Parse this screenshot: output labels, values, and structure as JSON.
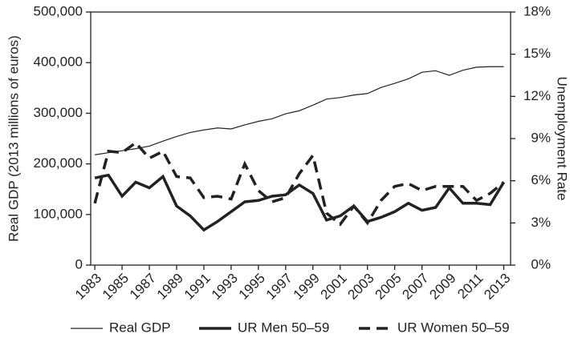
{
  "chart_data": {
    "type": "line",
    "x": [
      1983,
      1984,
      1985,
      1986,
      1987,
      1988,
      1989,
      1990,
      1991,
      1992,
      1993,
      1994,
      1995,
      1996,
      1997,
      1998,
      1999,
      2000,
      2001,
      2002,
      2003,
      2004,
      2005,
      2006,
      2007,
      2008,
      2009,
      2010,
      2011,
      2012,
      2013
    ],
    "xlim": [
      1982.7,
      2013.5
    ],
    "xticks": [
      1983,
      1985,
      1987,
      1989,
      1991,
      1993,
      1995,
      1997,
      1999,
      2001,
      2003,
      2005,
      2007,
      2009,
      2011,
      2013
    ],
    "ylabel": "Real GDP (2013 millions of euros)",
    "y2label": "Unemployment Rate",
    "ylim": [
      0,
      500000
    ],
    "yticks": [
      0,
      {
        "value": 100000,
        "label": "100,000"
      },
      {
        "value": 200000,
        "label": "200,000"
      },
      {
        "value": 300000,
        "label": "300,000"
      },
      {
        "value": 400000,
        "label": "400,000"
      },
      {
        "value": 500000,
        "label": "500,000"
      }
    ],
    "y2lim": [
      0,
      18
    ],
    "y2ticks": [
      {
        "value": 0,
        "label": "0%"
      },
      {
        "value": 3,
        "label": "3%"
      },
      {
        "value": 6,
        "label": "6%"
      },
      {
        "value": 9,
        "label": "9%"
      },
      {
        "value": 12,
        "label": "12%"
      },
      {
        "value": 15,
        "label": "15%"
      },
      {
        "value": 18,
        "label": "18%"
      }
    ],
    "legend": "bottom",
    "series": [
      {
        "name": "Real GDP",
        "color": "#222222",
        "width": 1.2,
        "dash": false,
        "values": [
          218000,
          222000,
          226000,
          230000,
          235000,
          245000,
          254000,
          262000,
          267000,
          271000,
          269000,
          277000,
          284000,
          289000,
          299000,
          305000,
          316000,
          328000,
          331000,
          336000,
          339000,
          351000,
          359000,
          368000,
          381000,
          384000,
          375000,
          385000,
          391000,
          392000,
          392000
        ]
      },
      {
        "name": "UR Men 50–59",
        "color": "#222222",
        "width": 3.5,
        "dash": false,
        "axis": "y2",
        "values": [
          6.2,
          6.4,
          4.9,
          5.9,
          5.5,
          6.3,
          4.2,
          3.5,
          2.5,
          3.1,
          3.8,
          4.5,
          4.6,
          4.9,
          5.0,
          5.7,
          5.1,
          3.2,
          3.5,
          4.2,
          3.1,
          3.4,
          3.8,
          4.4,
          3.9,
          4.1,
          5.5,
          4.4,
          4.4,
          4.3,
          5.9
        ]
      },
      {
        "name": "UR Women 50–59",
        "color": "#222222",
        "width": 3.5,
        "dash": true,
        "axis": "y2",
        "values": [
          4.4,
          8.1,
          8.0,
          8.7,
          7.6,
          8.1,
          6.3,
          6.2,
          4.8,
          4.9,
          4.7,
          7.2,
          5.3,
          4.5,
          4.8,
          6.5,
          7.8,
          3.7,
          2.9,
          4.2,
          3.0,
          4.6,
          5.6,
          5.8,
          5.3,
          5.6,
          5.6,
          5.6,
          4.6,
          5.1,
          5.9
        ]
      }
    ]
  }
}
